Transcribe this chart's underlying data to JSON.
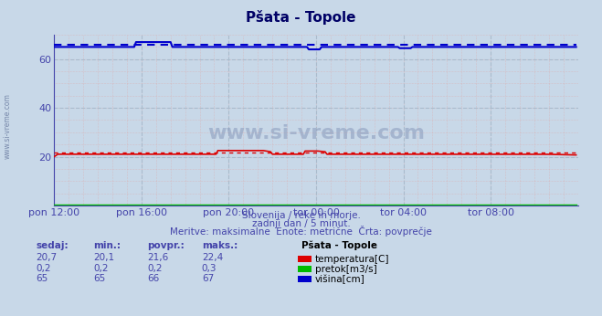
{
  "title": "Pšata - Topole",
  "bg_color": "#c8d8e8",
  "plot_bg_color": "#c8d8e8",
  "text_color": "#4444aa",
  "figsize": [
    6.59,
    3.46
  ],
  "dpi": 100,
  "xlim": [
    0,
    288
  ],
  "ylim": [
    0,
    70
  ],
  "yticks": [
    20,
    40,
    60
  ],
  "xtick_labels": [
    "pon 12:00",
    "pon 16:00",
    "pon 20:00",
    "tor 00:00",
    "tor 04:00",
    "tor 08:00"
  ],
  "xtick_positions": [
    0,
    48,
    96,
    144,
    192,
    240
  ],
  "watermark": "www.si-vreme.com",
  "subtitle1": "Slovenija / reke in morje.",
  "subtitle2": "zadnji dan / 5 minut.",
  "subtitle3": "Meritve: maksimalne  Enote: metrične  Črta: povprečje",
  "legend_title": "Pšata - Topole",
  "legend_items": [
    {
      "label": "temperatura[C]",
      "color": "#dd0000"
    },
    {
      "label": "pretok[m3/s]",
      "color": "#00bb00"
    },
    {
      "label": "višina[cm]",
      "color": "#0000cc"
    }
  ],
  "table_headers": [
    "sedaj:",
    "min.:",
    "povpr.:",
    "maks.:"
  ],
  "table_data": [
    [
      "20,7",
      "20,1",
      "21,6",
      "22,4"
    ],
    [
      "0,2",
      "0,2",
      "0,2",
      "0,3"
    ],
    [
      "65",
      "65",
      "66",
      "67"
    ]
  ],
  "minor_grid_color": "#ddaaaa",
  "major_grid_color": "#aabbcc",
  "title_color": "#000066",
  "axis_color": "#4444aa"
}
